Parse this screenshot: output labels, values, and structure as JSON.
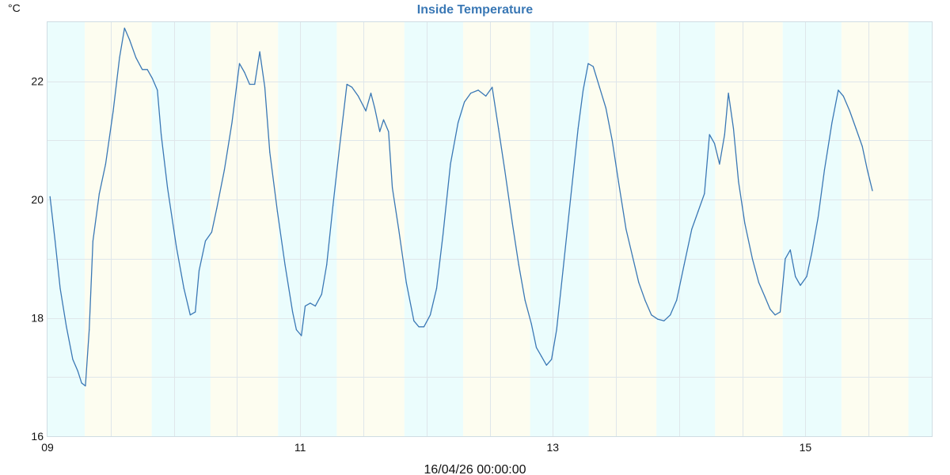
{
  "colors": {
    "line": "#3a78b5",
    "title": "#3a78b5",
    "night_band": "#ebfdfd",
    "day_band": "#fdfdf0",
    "grid": "#dfe6ea",
    "plot_border": "#cfdde3",
    "text": "#111111"
  },
  "chart_data": {
    "type": "line",
    "title": "Inside Temperature",
    "ylabel": "°C",
    "xlabel": "16/04/26 00:00:00",
    "xlim": [
      9.0,
      16.0
    ],
    "ylim": [
      16,
      23
    ],
    "x_unit": "day of month",
    "x_ticks": [
      {
        "value": 9,
        "label": "09"
      },
      {
        "value": 11,
        "label": "11"
      },
      {
        "value": 13,
        "label": "13"
      },
      {
        "value": 15,
        "label": "15"
      }
    ],
    "y_ticks": [
      {
        "value": 16,
        "label": "16"
      },
      {
        "value": 18,
        "label": "18"
      },
      {
        "value": 20,
        "label": "20"
      },
      {
        "value": 22,
        "label": "22"
      }
    ],
    "grid": true,
    "x_gridlines": [
      9.5,
      10.0,
      10.5,
      11.0,
      11.5,
      12.0,
      12.5,
      13.0,
      13.5,
      14.0,
      14.5,
      15.0,
      15.5
    ],
    "y_gridlines": [
      17,
      18,
      19,
      20,
      21,
      22
    ],
    "bands": [
      {
        "kind": "night",
        "start": 9.0,
        "end": 9.295
      },
      {
        "kind": "day",
        "start": 9.295,
        "end": 9.825
      },
      {
        "kind": "night",
        "start": 9.825,
        "end": 10.29
      },
      {
        "kind": "day",
        "start": 10.29,
        "end": 10.825
      },
      {
        "kind": "night",
        "start": 10.825,
        "end": 11.29
      },
      {
        "kind": "day",
        "start": 11.29,
        "end": 11.825
      },
      {
        "kind": "night",
        "start": 11.825,
        "end": 12.29
      },
      {
        "kind": "day",
        "start": 12.29,
        "end": 12.82
      },
      {
        "kind": "night",
        "start": 12.82,
        "end": 13.285
      },
      {
        "kind": "day",
        "start": 13.285,
        "end": 13.82
      },
      {
        "kind": "night",
        "start": 13.82,
        "end": 14.285
      },
      {
        "kind": "day",
        "start": 14.285,
        "end": 14.82
      },
      {
        "kind": "night",
        "start": 14.82,
        "end": 15.285
      },
      {
        "kind": "day",
        "start": 15.285,
        "end": 15.815
      },
      {
        "kind": "night",
        "start": 15.815,
        "end": 16.0
      }
    ],
    "series": [
      {
        "points": [
          [
            9.02,
            20.05
          ],
          [
            9.06,
            19.3
          ],
          [
            9.1,
            18.5
          ],
          [
            9.15,
            17.85
          ],
          [
            9.2,
            17.3
          ],
          [
            9.24,
            17.1
          ],
          [
            9.27,
            16.9
          ],
          [
            9.3,
            16.85
          ],
          [
            9.33,
            17.8
          ],
          [
            9.36,
            19.3
          ],
          [
            9.41,
            20.1
          ],
          [
            9.46,
            20.6
          ],
          [
            9.52,
            21.5
          ],
          [
            9.57,
            22.4
          ],
          [
            9.61,
            22.9
          ],
          [
            9.65,
            22.7
          ],
          [
            9.7,
            22.4
          ],
          [
            9.75,
            22.2
          ],
          [
            9.79,
            22.2
          ],
          [
            9.83,
            22.05
          ],
          [
            9.87,
            21.85
          ],
          [
            9.9,
            21.1
          ],
          [
            9.95,
            20.2
          ],
          [
            10.02,
            19.2
          ],
          [
            10.08,
            18.5
          ],
          [
            10.13,
            18.05
          ],
          [
            10.17,
            18.1
          ],
          [
            10.2,
            18.8
          ],
          [
            10.25,
            19.3
          ],
          [
            10.3,
            19.45
          ],
          [
            10.34,
            19.85
          ],
          [
            10.4,
            20.5
          ],
          [
            10.46,
            21.3
          ],
          [
            10.52,
            22.3
          ],
          [
            10.56,
            22.15
          ],
          [
            10.6,
            21.95
          ],
          [
            10.64,
            21.95
          ],
          [
            10.68,
            22.5
          ],
          [
            10.72,
            21.9
          ],
          [
            10.76,
            20.8
          ],
          [
            10.82,
            19.8
          ],
          [
            10.88,
            18.9
          ],
          [
            10.94,
            18.1
          ],
          [
            10.97,
            17.8
          ],
          [
            11.01,
            17.7
          ],
          [
            11.04,
            18.2
          ],
          [
            11.08,
            18.25
          ],
          [
            11.12,
            18.2
          ],
          [
            11.17,
            18.4
          ],
          [
            11.21,
            18.9
          ],
          [
            11.26,
            19.9
          ],
          [
            11.31,
            20.85
          ],
          [
            11.37,
            21.95
          ],
          [
            11.41,
            21.9
          ],
          [
            11.46,
            21.75
          ],
          [
            11.52,
            21.5
          ],
          [
            11.56,
            21.8
          ],
          [
            11.59,
            21.55
          ],
          [
            11.63,
            21.15
          ],
          [
            11.66,
            21.35
          ],
          [
            11.7,
            21.15
          ],
          [
            11.73,
            20.2
          ],
          [
            11.78,
            19.5
          ],
          [
            11.84,
            18.6
          ],
          [
            11.9,
            17.95
          ],
          [
            11.94,
            17.85
          ],
          [
            11.98,
            17.85
          ],
          [
            12.03,
            18.05
          ],
          [
            12.08,
            18.5
          ],
          [
            12.13,
            19.4
          ],
          [
            12.19,
            20.6
          ],
          [
            12.25,
            21.3
          ],
          [
            12.3,
            21.65
          ],
          [
            12.35,
            21.8
          ],
          [
            12.41,
            21.85
          ],
          [
            12.47,
            21.75
          ],
          [
            12.52,
            21.9
          ],
          [
            12.57,
            21.2
          ],
          [
            12.62,
            20.5
          ],
          [
            12.68,
            19.6
          ],
          [
            12.73,
            18.9
          ],
          [
            12.78,
            18.3
          ],
          [
            12.83,
            17.9
          ],
          [
            12.87,
            17.5
          ],
          [
            12.91,
            17.35
          ],
          [
            12.95,
            17.2
          ],
          [
            12.99,
            17.3
          ],
          [
            13.03,
            17.8
          ],
          [
            13.08,
            18.8
          ],
          [
            13.14,
            20.0
          ],
          [
            13.2,
            21.2
          ],
          [
            13.24,
            21.85
          ],
          [
            13.28,
            22.3
          ],
          [
            13.32,
            22.25
          ],
          [
            13.37,
            21.9
          ],
          [
            13.42,
            21.55
          ],
          [
            13.47,
            21.0
          ],
          [
            13.52,
            20.3
          ],
          [
            13.58,
            19.5
          ],
          [
            13.63,
            19.05
          ],
          [
            13.68,
            18.6
          ],
          [
            13.73,
            18.3
          ],
          [
            13.78,
            18.05
          ],
          [
            13.83,
            17.98
          ],
          [
            13.88,
            17.95
          ],
          [
            13.93,
            18.05
          ],
          [
            13.98,
            18.3
          ],
          [
            14.04,
            18.9
          ],
          [
            14.1,
            19.5
          ],
          [
            14.15,
            19.8
          ],
          [
            14.2,
            20.1
          ],
          [
            14.24,
            21.1
          ],
          [
            14.28,
            20.95
          ],
          [
            14.32,
            20.6
          ],
          [
            14.36,
            21.1
          ],
          [
            14.39,
            21.8
          ],
          [
            14.43,
            21.2
          ],
          [
            14.47,
            20.3
          ],
          [
            14.52,
            19.6
          ],
          [
            14.58,
            19.0
          ],
          [
            14.63,
            18.6
          ],
          [
            14.68,
            18.35
          ],
          [
            14.72,
            18.15
          ],
          [
            14.76,
            18.05
          ],
          [
            14.8,
            18.1
          ],
          [
            14.84,
            19.0
          ],
          [
            14.88,
            19.15
          ],
          [
            14.92,
            18.7
          ],
          [
            14.96,
            18.55
          ],
          [
            15.01,
            18.7
          ],
          [
            15.05,
            19.1
          ],
          [
            15.1,
            19.7
          ],
          [
            15.15,
            20.5
          ],
          [
            15.21,
            21.3
          ],
          [
            15.26,
            21.85
          ],
          [
            15.3,
            21.75
          ],
          [
            15.35,
            21.5
          ],
          [
            15.4,
            21.2
          ],
          [
            15.45,
            20.9
          ],
          [
            15.49,
            20.5
          ],
          [
            15.53,
            20.15
          ]
        ]
      }
    ]
  }
}
